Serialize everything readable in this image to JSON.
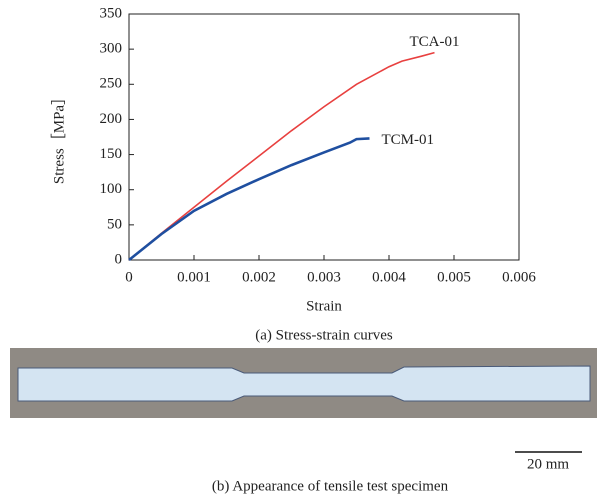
{
  "chart_data": {
    "type": "line",
    "xlabel": "Strain",
    "ylabel": "Stress［MPa］",
    "caption": "(a) Stress-strain curves",
    "xlim": [
      0,
      0.006
    ],
    "xticks": [
      0,
      0.001,
      0.002,
      0.003,
      0.004,
      0.005,
      0.006
    ],
    "ylim": [
      0,
      350
    ],
    "yticks": [
      0,
      50,
      100,
      150,
      200,
      250,
      300,
      350
    ],
    "series": [
      {
        "name": "TCA-01",
        "color": "#e8403f",
        "x": [
          0,
          0.0005,
          0.001,
          0.0015,
          0.002,
          0.0025,
          0.003,
          0.0035,
          0.004,
          0.0042,
          0.0045,
          0.0047
        ],
        "values": [
          0,
          38,
          75,
          112,
          148,
          184,
          218,
          250,
          275,
          283,
          290,
          295
        ]
      },
      {
        "name": "TCM-01",
        "color": "#1f4fa0",
        "x": [
          0,
          0.0005,
          0.001,
          0.0015,
          0.002,
          0.0025,
          0.003,
          0.0034,
          0.0035,
          0.0037
        ],
        "values": [
          0,
          37,
          70,
          94,
          115,
          135,
          153,
          167,
          172,
          173
        ]
      }
    ]
  },
  "photo": {
    "caption": "(b) Appearance of tensile test specimen",
    "scale_bar": "20 mm"
  }
}
